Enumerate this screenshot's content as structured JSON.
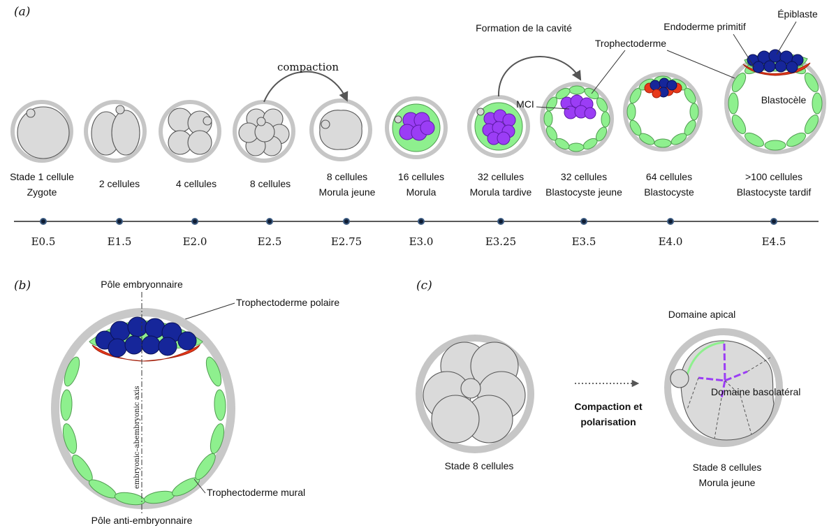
{
  "panels": {
    "a": "(a)",
    "b": "(b)",
    "c": "(c)"
  },
  "panel_a": {
    "stages": [
      {
        "line1": "Stade 1 cellule",
        "line2": "Zygote",
        "time": "E0.5"
      },
      {
        "line1": "2 cellules",
        "line2": "",
        "time": "E1.5"
      },
      {
        "line1": "4 cellules",
        "line2": "",
        "time": "E2.0"
      },
      {
        "line1": "8 cellules",
        "line2": "",
        "time": "E2.5"
      },
      {
        "line1": "8 cellules",
        "line2": "Morula jeune",
        "time": "E2.75"
      },
      {
        "line1": "16 cellules",
        "line2": "Morula",
        "time": "E3.0"
      },
      {
        "line1": "32 cellules",
        "line2": "Morula tardive",
        "time": "E3.25"
      },
      {
        "line1": "32 cellules",
        "line2": "Blastocyste jeune",
        "time": "E3.5"
      },
      {
        "line1": "64 cellules",
        "line2": "Blastocyste",
        "time": "E4.0"
      },
      {
        "line1": ">100 cellules",
        "line2": "Blastocyste tardif",
        "time": "E4.5"
      }
    ],
    "compaction": "compaction",
    "cavity": "Formation de la cavité",
    "mci": "MCI",
    "trophectoderme": "Trophectoderme",
    "endoderme": "Endoderme primitif",
    "epiblaste": "Épiblaste",
    "blastocoele": "Blastocèle"
  },
  "panel_b": {
    "pole_embryo": "Pôle embryonnaire",
    "pole_anti": "Pôle anti-embryonnaire",
    "troph_polaire": "Trophectoderme polaire",
    "troph_mural": "Trophectoderme mural",
    "axis": "embryonic–abembryonic axis"
  },
  "panel_c": {
    "left_label": "Stade 8 cellules",
    "right_line1": "Stade 8 cellules",
    "right_line2": "Morula jeune",
    "apical": "Domaine apical",
    "basolateral": "Domaine basolatéral",
    "arrow_line1": "Compaction et",
    "arrow_line2": "polarisation"
  },
  "colors": {
    "trophectoderm": "#8ef08e",
    "inner_cell_mass": "#9b3df5",
    "epiblast": "#16269a",
    "primitive_endoderm": "#e8391b",
    "zona": "#c6c6c6",
    "blastomere": "#dadada"
  }
}
